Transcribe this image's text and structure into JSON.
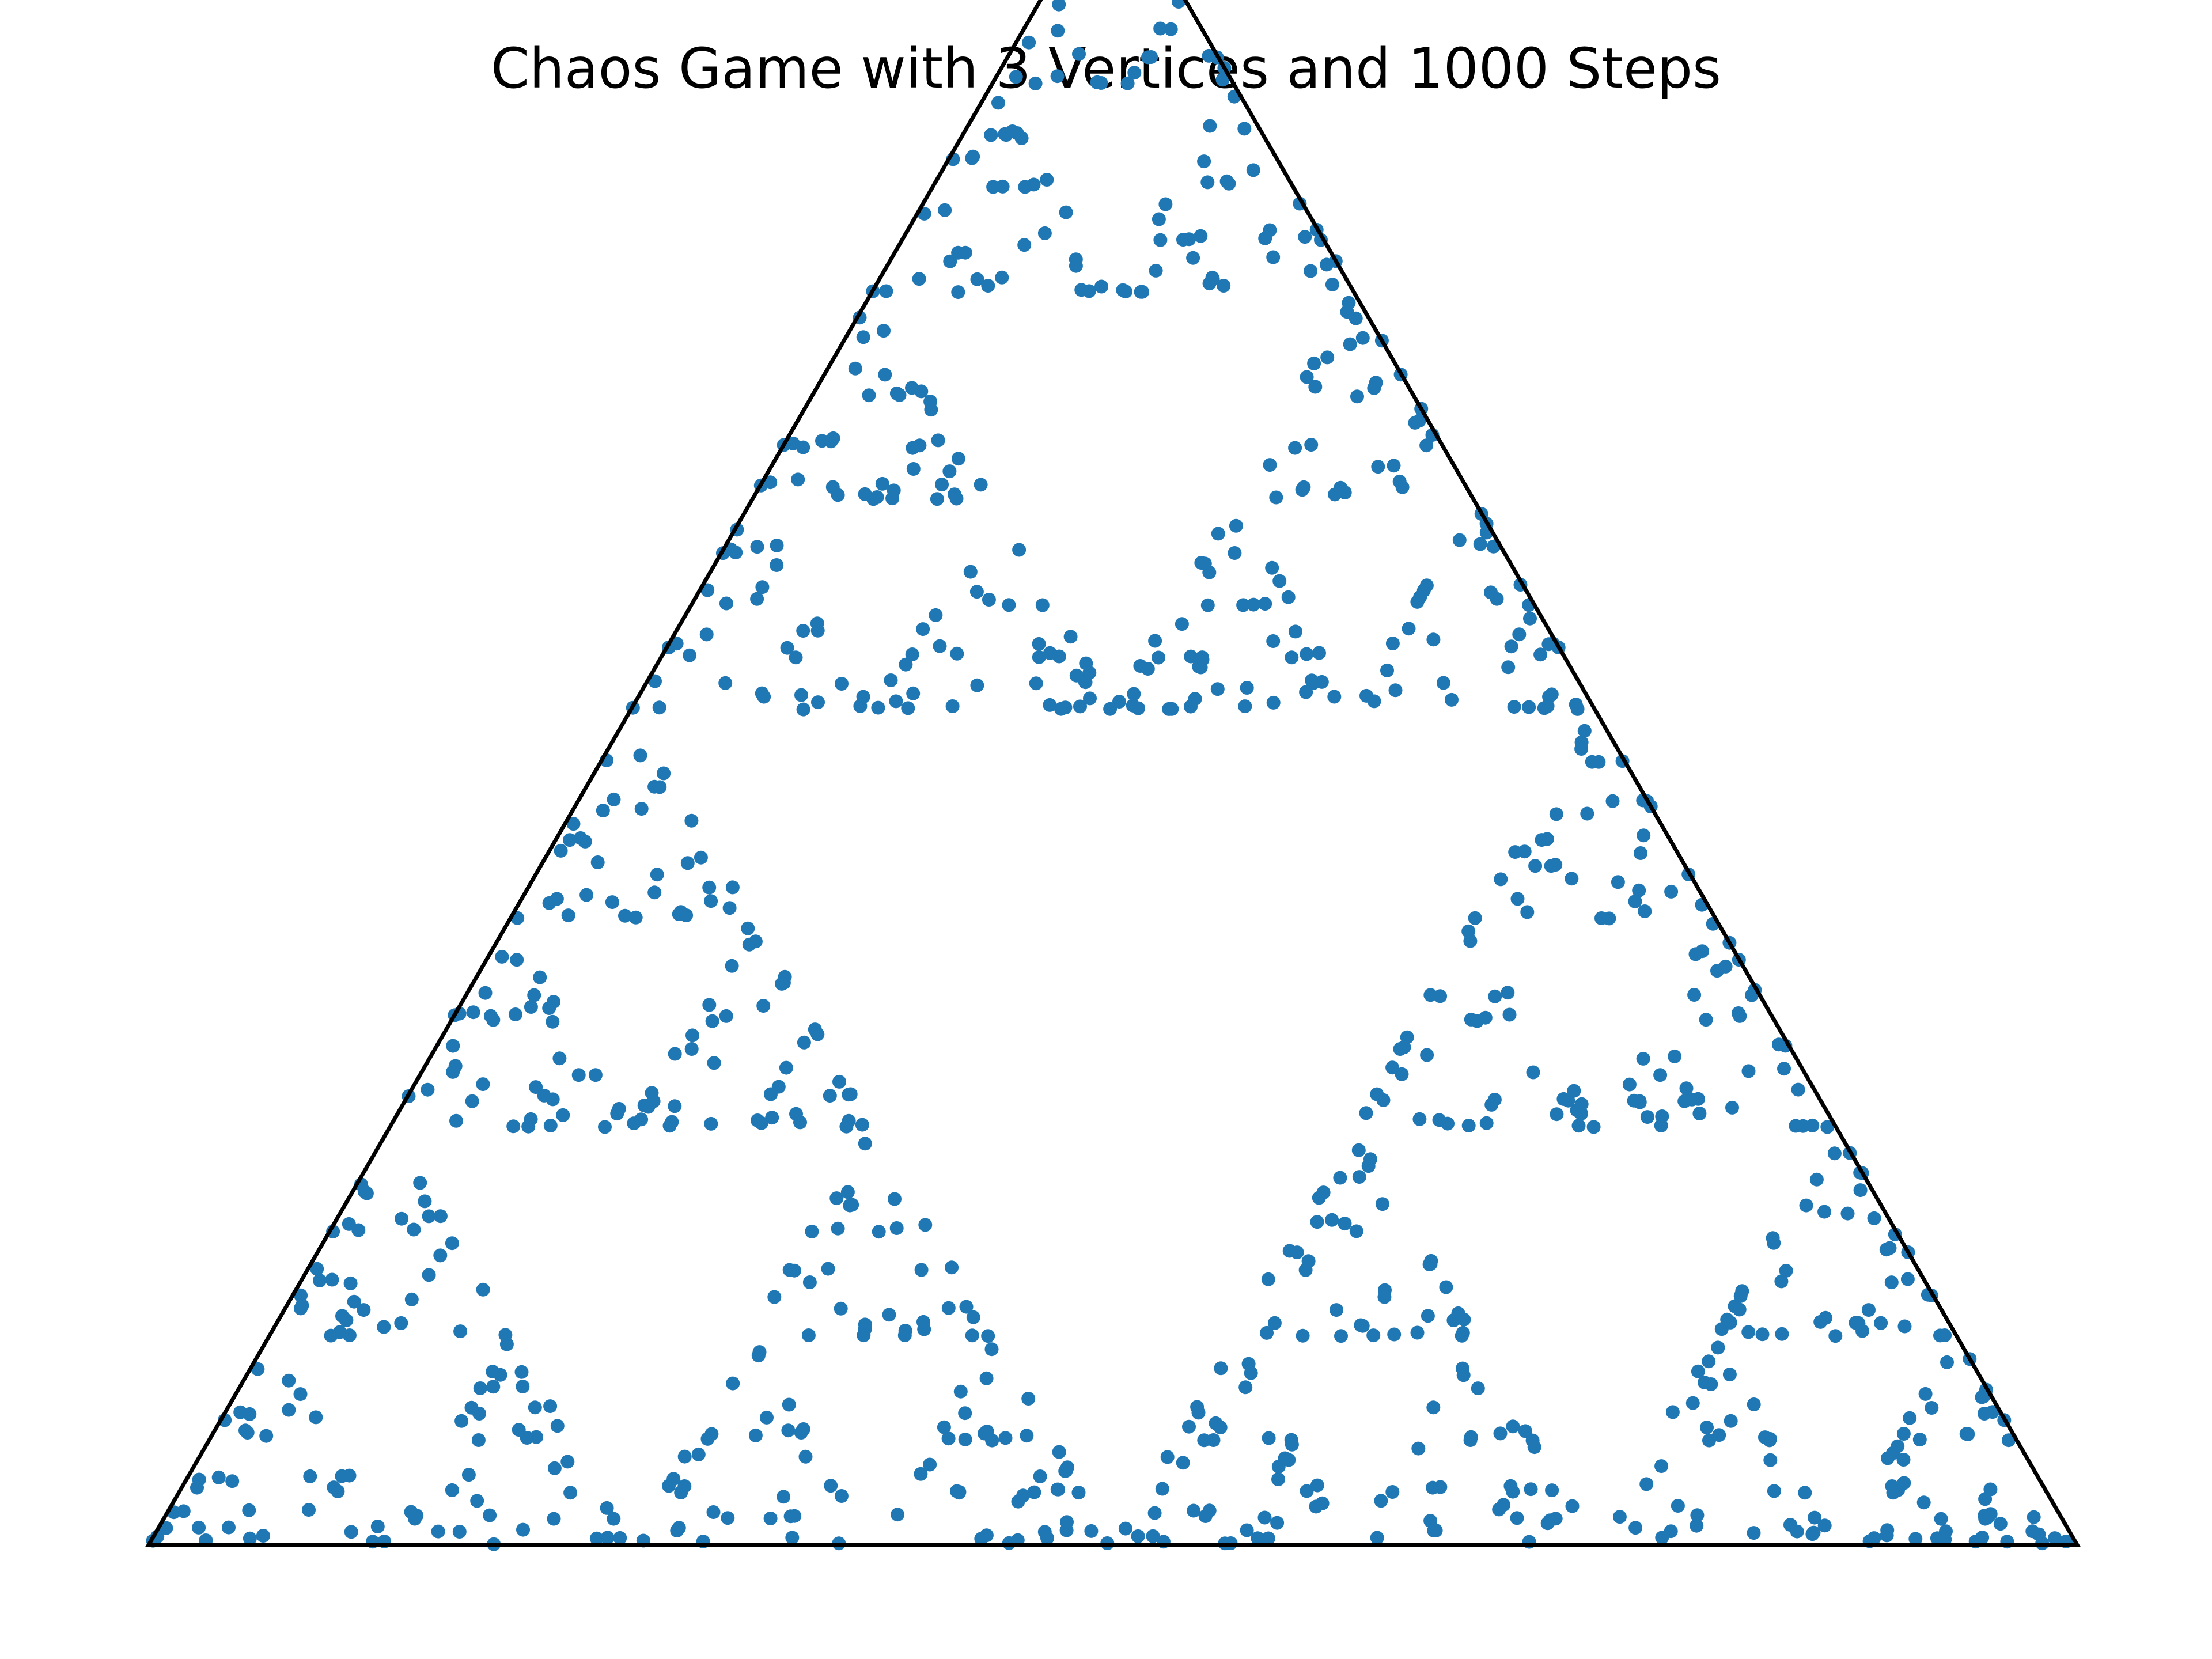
{
  "chart_data": {
    "type": "scatter",
    "title": "Chaos Game with 3 Vertices and 1000 Steps",
    "xlabel": "",
    "ylabel": "",
    "axes_visible": false,
    "grid": false,
    "legend": "none",
    "n_points": 1000,
    "vertices": [
      [
        0,
        0
      ],
      [
        1,
        0
      ],
      [
        0.5,
        0.866
      ]
    ],
    "xlim": [
      0,
      1
    ],
    "ylim": [
      0,
      0.866
    ],
    "point_color": "#1f77b4",
    "outline_color": "#000000"
  }
}
